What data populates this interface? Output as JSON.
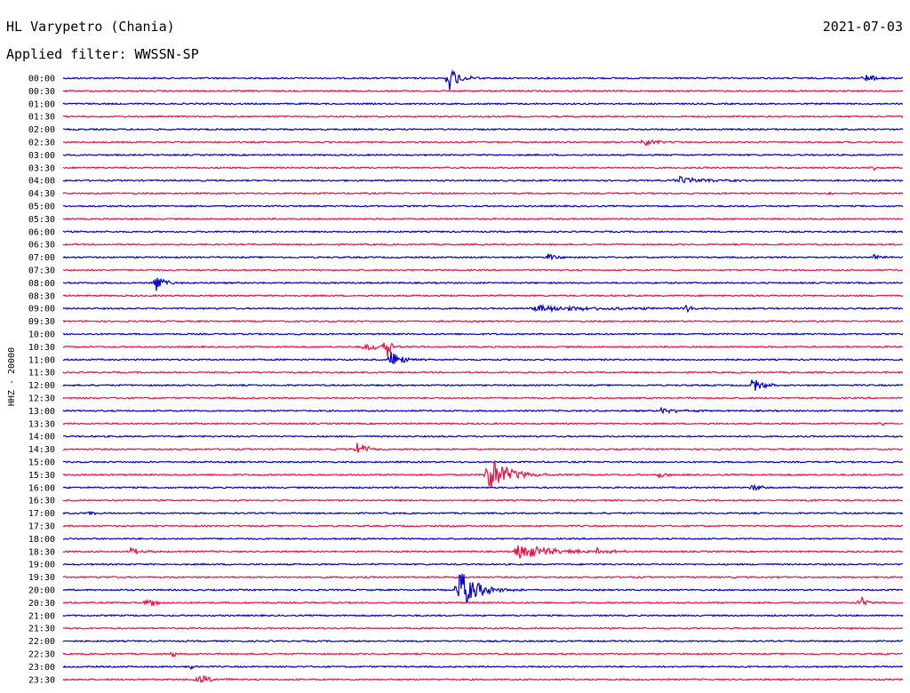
{
  "header": {
    "station": "HL Varypetro (Chania)",
    "date": "2021-07-03",
    "filter": "Applied filter: WWSSN-SP"
  },
  "colors": {
    "even": "#0000cc",
    "odd": "#ee1144"
  },
  "chart_data": {
    "type": "helicorder",
    "ylabel": "HHZ - 20000",
    "time_labels": [
      "00:00",
      "00:30",
      "01:00",
      "01:30",
      "02:00",
      "02:30",
      "03:00",
      "03:30",
      "04:00",
      "04:30",
      "05:00",
      "05:30",
      "06:00",
      "06:30",
      "07:00",
      "07:30",
      "08:00",
      "08:30",
      "09:00",
      "09:30",
      "10:00",
      "10:30",
      "11:00",
      "11:30",
      "12:00",
      "12:30",
      "13:00",
      "13:30",
      "14:00",
      "14:30",
      "15:00",
      "15:30",
      "16:00",
      "16:30",
      "17:00",
      "17:30",
      "18:00",
      "18:30",
      "19:00",
      "19:30",
      "20:00",
      "20:30",
      "21:00",
      "21:30",
      "22:00",
      "22:30",
      "23:00",
      "23:30"
    ],
    "events": [
      {
        "row": 0,
        "t": 0.46,
        "amp": 14,
        "dur": 0.012
      },
      {
        "row": 0,
        "t": 0.955,
        "amp": 5,
        "dur": 0.015
      },
      {
        "row": 5,
        "t": 0.69,
        "amp": 6,
        "dur": 0.012
      },
      {
        "row": 7,
        "t": 0.965,
        "amp": 3,
        "dur": 0.006
      },
      {
        "row": 8,
        "t": 0.73,
        "amp": 5,
        "dur": 0.03
      },
      {
        "row": 8,
        "t": 1.0,
        "amp": 3,
        "dur": 0.005
      },
      {
        "row": 9,
        "t": 0.915,
        "amp": 3,
        "dur": 0.008
      },
      {
        "row": 14,
        "t": 0.575,
        "amp": 5,
        "dur": 0.01
      },
      {
        "row": 14,
        "t": 0.965,
        "amp": 3,
        "dur": 0.02
      },
      {
        "row": 16,
        "t": 0.11,
        "amp": 10,
        "dur": 0.01
      },
      {
        "row": 18,
        "t": 0.56,
        "amp": 4,
        "dur": 0.08
      },
      {
        "row": 18,
        "t": 0.74,
        "amp": 4,
        "dur": 0.01
      },
      {
        "row": 21,
        "t": 0.36,
        "amp": 5,
        "dur": 0.02
      },
      {
        "row": 21,
        "t": 0.385,
        "amp": 20,
        "dur": 0.004
      },
      {
        "row": 22,
        "t": 0.39,
        "amp": 12,
        "dur": 0.012
      },
      {
        "row": 24,
        "t": 0.82,
        "amp": 10,
        "dur": 0.012
      },
      {
        "row": 26,
        "t": 0.71,
        "amp": 4,
        "dur": 0.02
      },
      {
        "row": 27,
        "t": 0.975,
        "amp": 2,
        "dur": 0.005
      },
      {
        "row": 29,
        "t": 0.35,
        "amp": 10,
        "dur": 0.01
      },
      {
        "row": 31,
        "t": 0.505,
        "amp": 24,
        "dur": 0.022
      },
      {
        "row": 31,
        "t": 0.71,
        "amp": 4,
        "dur": 0.008
      },
      {
        "row": 32,
        "t": 0.82,
        "amp": 5,
        "dur": 0.01
      },
      {
        "row": 33,
        "t": 0.89,
        "amp": 2,
        "dur": 0.01
      },
      {
        "row": 34,
        "t": 0.03,
        "amp": 3,
        "dur": 0.008
      },
      {
        "row": 37,
        "t": 0.08,
        "amp": 4,
        "dur": 0.015
      },
      {
        "row": 37,
        "t": 0.54,
        "amp": 10,
        "dur": 0.04
      },
      {
        "row": 37,
        "t": 0.635,
        "amp": 4,
        "dur": 0.015
      },
      {
        "row": 40,
        "t": 0.47,
        "amp": 26,
        "dur": 0.02
      },
      {
        "row": 41,
        "t": 0.1,
        "amp": 8,
        "dur": 0.008
      },
      {
        "row": 41,
        "t": 0.95,
        "amp": 7,
        "dur": 0.008
      },
      {
        "row": 45,
        "t": 0.13,
        "amp": 4,
        "dur": 0.004
      },
      {
        "row": 46,
        "t": 0.15,
        "amp": 4,
        "dur": 0.005
      },
      {
        "row": 47,
        "t": 0.16,
        "amp": 6,
        "dur": 0.015
      }
    ]
  }
}
